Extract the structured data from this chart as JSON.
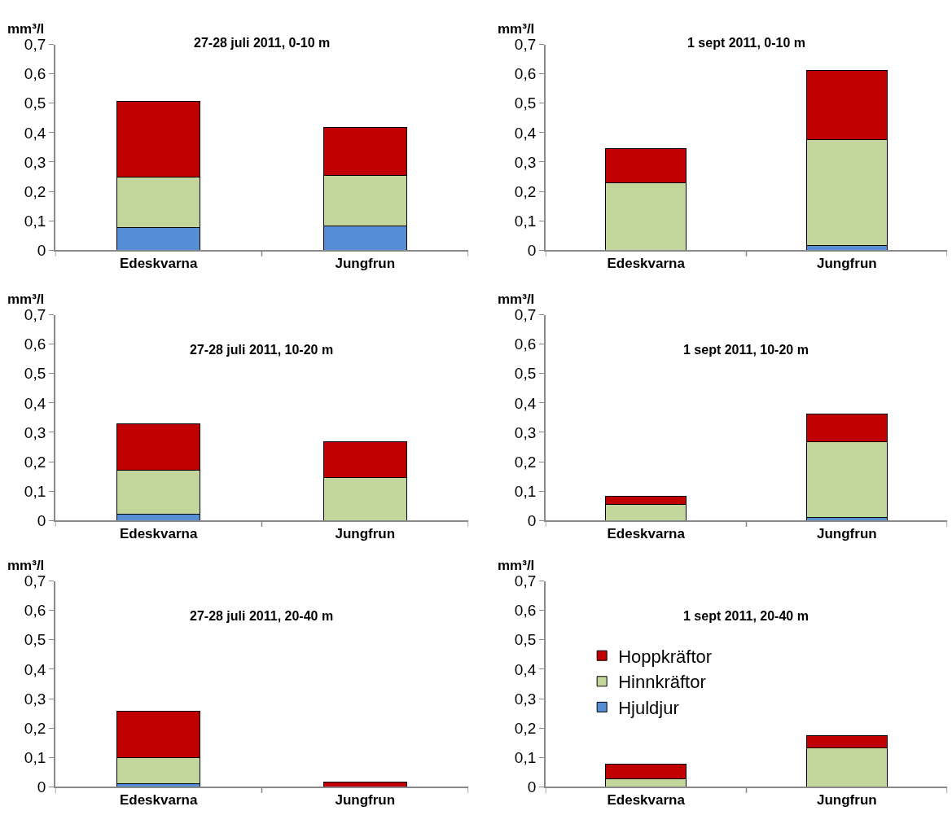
{
  "chart_data": [
    {
      "type": "bar",
      "title": "27-28 juli 2011, 0-10 m",
      "ylabel": "mm³/l",
      "categories": [
        "Edeskvarna",
        "Jungfrun"
      ],
      "stacked": true,
      "ylim": [
        0,
        0.7
      ],
      "yticks": [
        0,
        {
          "value": 0.1,
          "label": "0,1"
        },
        {
          "value": 0.2,
          "label": "0,2"
        },
        {
          "value": 0.3,
          "label": "0,3"
        },
        {
          "value": 0.4,
          "label": "0,4"
        },
        {
          "value": 0.5,
          "label": "0,5"
        },
        {
          "value": 0.6,
          "label": "0,6"
        },
        {
          "value": 0.7,
          "label": "0,7"
        }
      ],
      "series": [
        {
          "color": "#558ed5",
          "values": [
            0.077,
            0.083
          ]
        },
        {
          "color": "#c3d69b",
          "values": [
            0.173,
            0.172
          ]
        },
        {
          "color": "#c00000",
          "values": [
            0.255,
            0.162
          ]
        }
      ]
    },
    {
      "type": "bar",
      "title": "1 sept 2011, 0-10 m",
      "ylabel": "mm³/l",
      "categories": [
        "Edeskvarna",
        "Jungfrun"
      ],
      "stacked": true,
      "ylim": [
        0,
        0.7
      ],
      "yticks": [
        0,
        {
          "value": 0.1,
          "label": "0,1"
        },
        {
          "value": 0.2,
          "label": "0,2"
        },
        {
          "value": 0.3,
          "label": "0,3"
        },
        {
          "value": 0.4,
          "label": "0,4"
        },
        {
          "value": 0.5,
          "label": "0,5"
        },
        {
          "value": 0.6,
          "label": "0,6"
        },
        {
          "value": 0.7,
          "label": "0,7"
        }
      ],
      "series": [
        {
          "color": "#558ed5",
          "values": [
            null,
            0.017
          ]
        },
        {
          "color": "#c3d69b",
          "values": [
            0.228,
            0.36
          ]
        },
        {
          "color": "#c00000",
          "values": [
            0.117,
            0.235
          ]
        }
      ]
    },
    {
      "type": "bar",
      "title": "27-28 juli 2011, 10-20 m",
      "ylabel": "mm³/l",
      "categories": [
        "Edeskvarna",
        "Jungfrun"
      ],
      "stacked": true,
      "ylim": [
        0,
        0.7
      ],
      "yticks": [
        0,
        {
          "value": 0.1,
          "label": "0,1"
        },
        {
          "value": 0.2,
          "label": "0,2"
        },
        {
          "value": 0.3,
          "label": "0,3"
        },
        {
          "value": 0.4,
          "label": "0,4"
        },
        {
          "value": 0.5,
          "label": "0,5"
        },
        {
          "value": 0.6,
          "label": "0,6"
        },
        {
          "value": 0.7,
          "label": "0,7"
        }
      ],
      "series": [
        {
          "color": "#558ed5",
          "values": [
            0.022,
            0
          ]
        },
        {
          "color": "#c3d69b",
          "values": [
            0.15,
            0.145
          ]
        },
        {
          "color": "#c00000",
          "values": [
            0.156,
            0.122
          ]
        }
      ]
    },
    {
      "type": "bar",
      "title": "1 sept 2011, 10-20 m",
      "ylabel": "mm³/l",
      "categories": [
        "Edeskvarna",
        "Jungfrun"
      ],
      "stacked": true,
      "ylim": [
        0,
        0.7
      ],
      "yticks": [
        0,
        {
          "value": 0.1,
          "label": "0,1"
        },
        {
          "value": 0.2,
          "label": "0,2"
        },
        {
          "value": 0.3,
          "label": "0,3"
        },
        {
          "value": 0.4,
          "label": "0,4"
        },
        {
          "value": 0.5,
          "label": "0,5"
        },
        {
          "value": 0.6,
          "label": "0,6"
        },
        {
          "value": 0.7,
          "label": "0,7"
        }
      ],
      "series": [
        {
          "color": "#558ed5",
          "values": [
            0,
            0.01
          ]
        },
        {
          "color": "#c3d69b",
          "values": [
            0.055,
            0.257
          ]
        },
        {
          "color": "#c00000",
          "values": [
            0.028,
            0.095
          ]
        }
      ]
    },
    {
      "type": "bar",
      "title": "27-28 juli 2011, 20-40 m",
      "ylabel": "mm³/l",
      "categories": [
        "Edeskvarna",
        "Jungfrun"
      ],
      "stacked": true,
      "ylim": [
        0,
        0.7
      ],
      "yticks": [
        0,
        {
          "value": 0.1,
          "label": "0,1"
        },
        {
          "value": 0.2,
          "label": "0,2"
        },
        {
          "value": 0.3,
          "label": "0,3"
        },
        {
          "value": 0.4,
          "label": "0,4"
        },
        {
          "value": 0.5,
          "label": "0,5"
        },
        {
          "value": 0.6,
          "label": "0,6"
        },
        {
          "value": 0.7,
          "label": "0,7"
        }
      ],
      "series": [
        {
          "color": "#558ed5",
          "values": [
            0.01,
            null
          ]
        },
        {
          "color": "#c3d69b",
          "values": [
            0.09,
            null
          ]
        },
        {
          "color": "#c00000",
          "values": [
            0.157,
            0.015
          ]
        }
      ]
    },
    {
      "type": "bar",
      "title": "1 sept 2011, 20-40 m",
      "ylabel": "mm³/l",
      "categories": [
        "Edeskvarna",
        "Jungfrun"
      ],
      "stacked": true,
      "ylim": [
        0,
        0.7
      ],
      "yticks": [
        0,
        {
          "value": 0.1,
          "label": "0,1"
        },
        {
          "value": 0.2,
          "label": "0,2"
        },
        {
          "value": 0.3,
          "label": "0,3"
        },
        {
          "value": 0.4,
          "label": "0,4"
        },
        {
          "value": 0.5,
          "label": "0,5"
        },
        {
          "value": 0.6,
          "label": "0,6"
        },
        {
          "value": 0.7,
          "label": "0,7"
        }
      ],
      "legend": "left",
      "series": [
        {
          "name": "Hjuldjur",
          "color": "#558ed5",
          "values": [
            0,
            0
          ]
        },
        {
          "name": "Hinnkräftor",
          "color": "#c3d69b",
          "values": [
            0.027,
            0.133
          ]
        },
        {
          "name": "Hoppkräftor",
          "color": "#c00000",
          "values": [
            0.051,
            0.04
          ]
        }
      ]
    }
  ]
}
